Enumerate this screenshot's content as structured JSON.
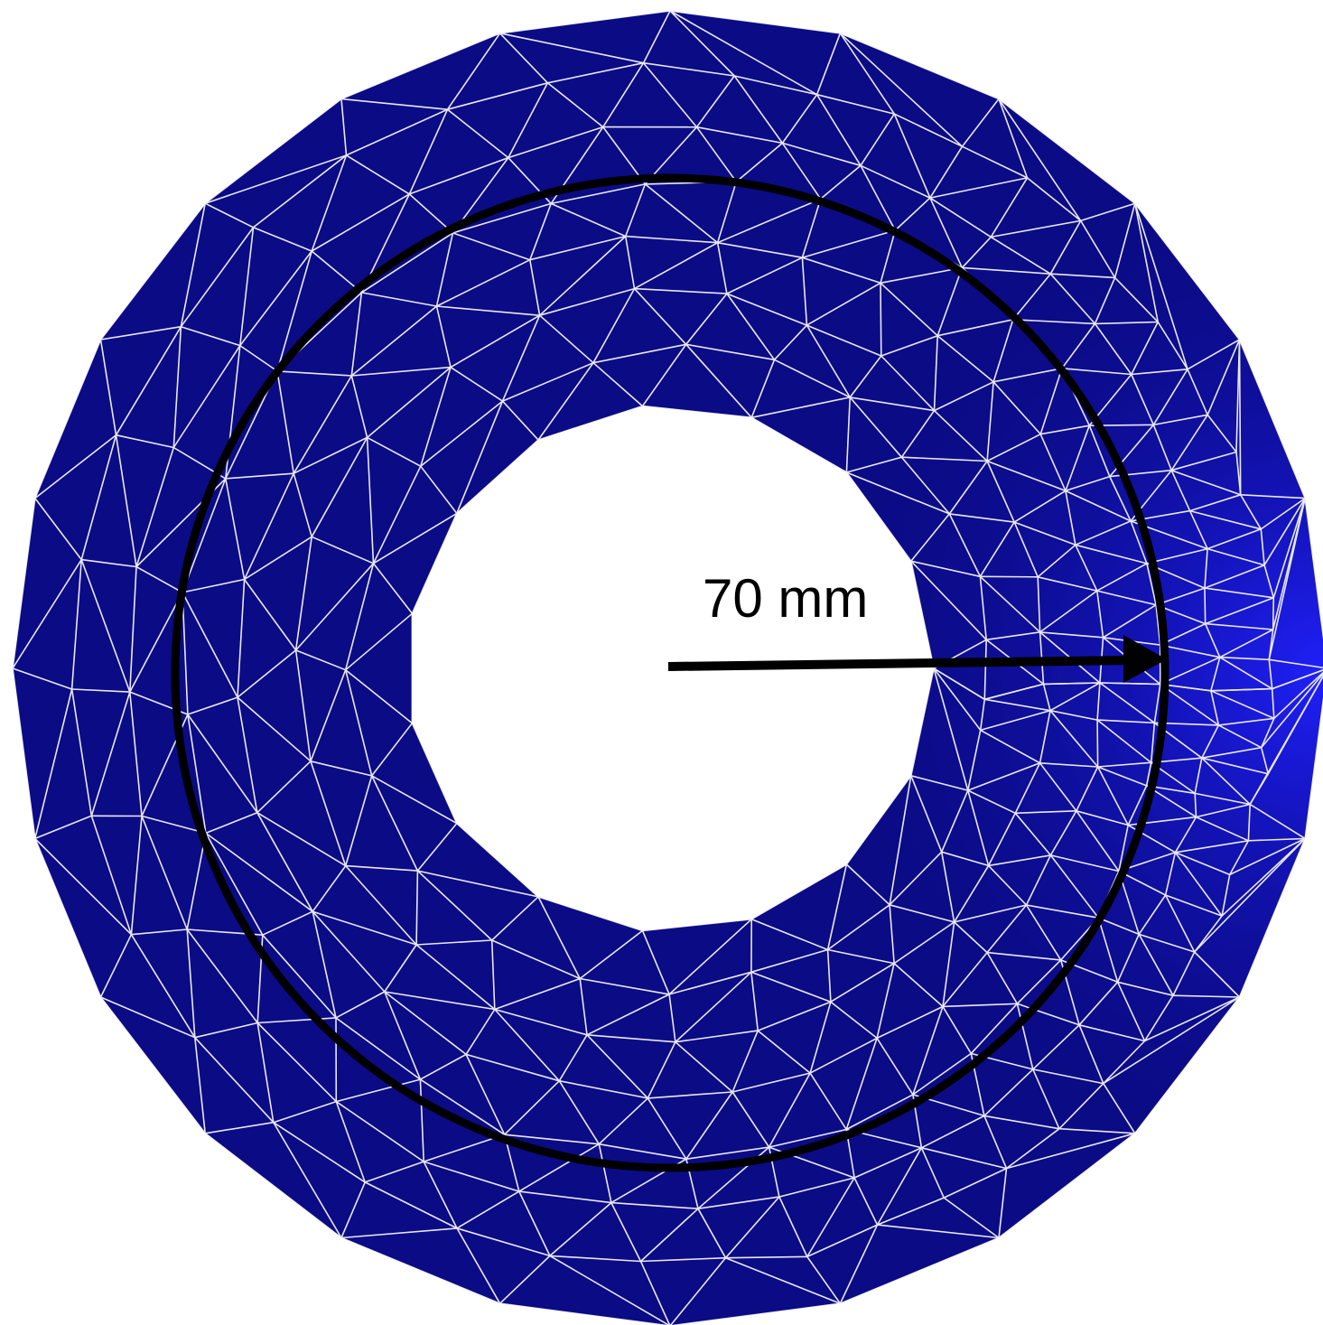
{
  "diagram": {
    "radius_label": "70 mm",
    "colors": {
      "background": "#ffffff",
      "mesh_fill_dark": "#0b0b86",
      "mesh_fill_bright": "#1a1ae8",
      "mesh_lines": "#e8e8f0",
      "measurement_circle": "#000000",
      "arrow": "#000000"
    }
  }
}
